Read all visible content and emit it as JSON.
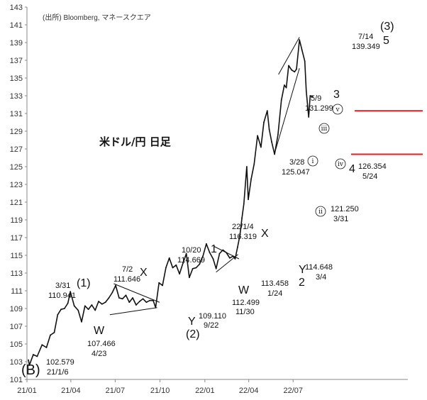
{
  "chart_data": {
    "type": "line",
    "title": "米ドル/円 日足",
    "source": "(出所)  Bloomberg, マネースクエア",
    "ylim": [
      101,
      143
    ],
    "y_ticks": [
      "101",
      "103",
      "105",
      "107",
      "109",
      "111",
      "113",
      "115",
      "117",
      "119",
      "121",
      "123",
      "125",
      "127",
      "129",
      "131",
      "133",
      "135",
      "137",
      "139",
      "141",
      "143"
    ],
    "x_ticks": [
      "21/01",
      "21/04",
      "21/07",
      "21/10",
      "22/01",
      "22/04",
      "22/07"
    ],
    "series": [
      {
        "x": [
          "2021-01-04",
          "2021-01-06",
          "2021-01-14",
          "2021-01-22",
          "2021-02-01",
          "2021-02-10",
          "2021-02-18",
          "2021-02-26",
          "2021-03-05",
          "2021-03-12",
          "2021-03-19",
          "2021-03-26",
          "2021-03-31",
          "2021-04-08",
          "2021-04-16",
          "2021-04-23",
          "2021-04-30",
          "2021-05-07",
          "2021-05-14",
          "2021-05-21",
          "2021-05-28",
          "2021-06-04",
          "2021-06-11",
          "2021-06-18",
          "2021-06-25",
          "2021-07-02",
          "2021-07-09",
          "2021-07-16",
          "2021-07-23",
          "2021-07-30",
          "2021-08-06",
          "2021-08-13",
          "2021-08-20",
          "2021-08-27",
          "2021-09-03",
          "2021-09-10",
          "2021-09-17",
          "2021-09-22",
          "2021-09-29",
          "2021-10-06",
          "2021-10-13",
          "2021-10-20",
          "2021-10-27",
          "2021-11-03",
          "2021-11-10",
          "2021-11-17",
          "2021-11-24",
          "2021-11-30",
          "2021-12-07",
          "2021-12-14",
          "2021-12-21",
          "2021-12-28",
          "2022-01-04",
          "2022-01-11",
          "2022-01-18",
          "2022-01-24",
          "2022-01-31",
          "2022-02-07",
          "2022-02-14",
          "2022-02-21",
          "2022-02-28",
          "2022-03-04",
          "2022-03-09",
          "2022-03-14",
          "2022-03-18",
          "2022-03-22",
          "2022-03-28",
          "2022-03-31",
          "2022-04-06",
          "2022-04-12",
          "2022-04-19",
          "2022-04-26",
          "2022-05-02",
          "2022-05-09",
          "2022-05-13",
          "2022-05-18",
          "2022-05-24",
          "2022-05-31",
          "2022-06-07",
          "2022-06-13",
          "2022-06-17",
          "2022-06-22",
          "2022-06-28",
          "2022-07-04",
          "2022-07-08",
          "2022-07-14",
          "2022-07-19",
          "2022-07-25",
          "2022-07-28",
          "2022-08-02",
          "2022-08-05",
          "2022-08-10"
        ],
        "values": [
          103.2,
          102.6,
          103.8,
          103.6,
          104.9,
          104.6,
          106.0,
          106.3,
          108.3,
          108.9,
          109.0,
          109.6,
          110.9,
          109.3,
          108.8,
          107.5,
          109.3,
          108.9,
          109.4,
          108.8,
          109.8,
          109.5,
          109.7,
          110.2,
          110.8,
          111.6,
          110.2,
          110.1,
          110.5,
          109.7,
          110.2,
          109.4,
          109.8,
          110.1,
          109.7,
          109.9,
          109.9,
          109.1,
          111.9,
          111.6,
          113.6,
          114.7,
          113.6,
          113.9,
          112.9,
          114.1,
          115.2,
          112.5,
          113.5,
          113.6,
          114.0,
          114.9,
          116.3,
          115.3,
          114.6,
          113.5,
          115.2,
          115.6,
          115.3,
          114.7,
          114.9,
          114.6,
          115.9,
          117.3,
          119.2,
          120.8,
          125.0,
          121.3,
          123.6,
          125.3,
          128.5,
          127.2,
          130.0,
          131.3,
          129.2,
          127.8,
          126.4,
          128.6,
          132.5,
          134.2,
          133.9,
          136.4,
          135.9,
          135.7,
          136.0,
          139.3,
          138.2,
          136.9,
          133.5,
          130.6,
          133.0,
          132.9
        ]
      }
    ],
    "annotations": {
      "B": "(B)",
      "b_date": "21/1/6",
      "b_value": "102.579",
      "w1_value": "110.941",
      "w1_date": "3/31",
      "w1_label": "(1)",
      "w_a_label": "W",
      "w_a_value": "107.466",
      "w_a_date": "4/23",
      "x_a_label": "X",
      "x_a_date": "7/2",
      "x_a_value": "111.646",
      "y_a_label": "Y",
      "w2_label": "(2)",
      "y_a_value": "109.110",
      "y_a_date": "9/22",
      "one_label": "1",
      "one_date": "10/20",
      "one_value": "114.669",
      "w_b_label": "W",
      "w_b_value": "112.499",
      "w_b_date": "11/30",
      "x_b_label": "X",
      "x_b_date": "22/1/4",
      "x_b_value": "116.319",
      "y_b_label": "Y",
      "two_label": "2",
      "y_b1_value": "113.458",
      "y_b1_date": "1/24",
      "y_b2_value": "114.648",
      "y_b2_date": "3/4",
      "i_label": "i",
      "i_date": "3/28",
      "i_value": "125.047",
      "ii_label": "ii",
      "ii_value": "121.250",
      "ii_date": "3/31",
      "iii_label": "iii",
      "v_label": "v",
      "three_label": "3",
      "three_date": "5/9",
      "three_value": "131.299",
      "iv_label": "iv",
      "four_label": "4",
      "four_value": "126.354",
      "four_date": "5/24",
      "five_label": "5",
      "wave3_label": "(3)",
      "five_date": "7/14",
      "five_value": "139.349"
    },
    "horizontal_lines": [
      {
        "y": 131.3,
        "color": "#e02020"
      },
      {
        "y": 126.4,
        "color": "#e02020"
      }
    ],
    "grid": false,
    "line_color": "#111111"
  }
}
